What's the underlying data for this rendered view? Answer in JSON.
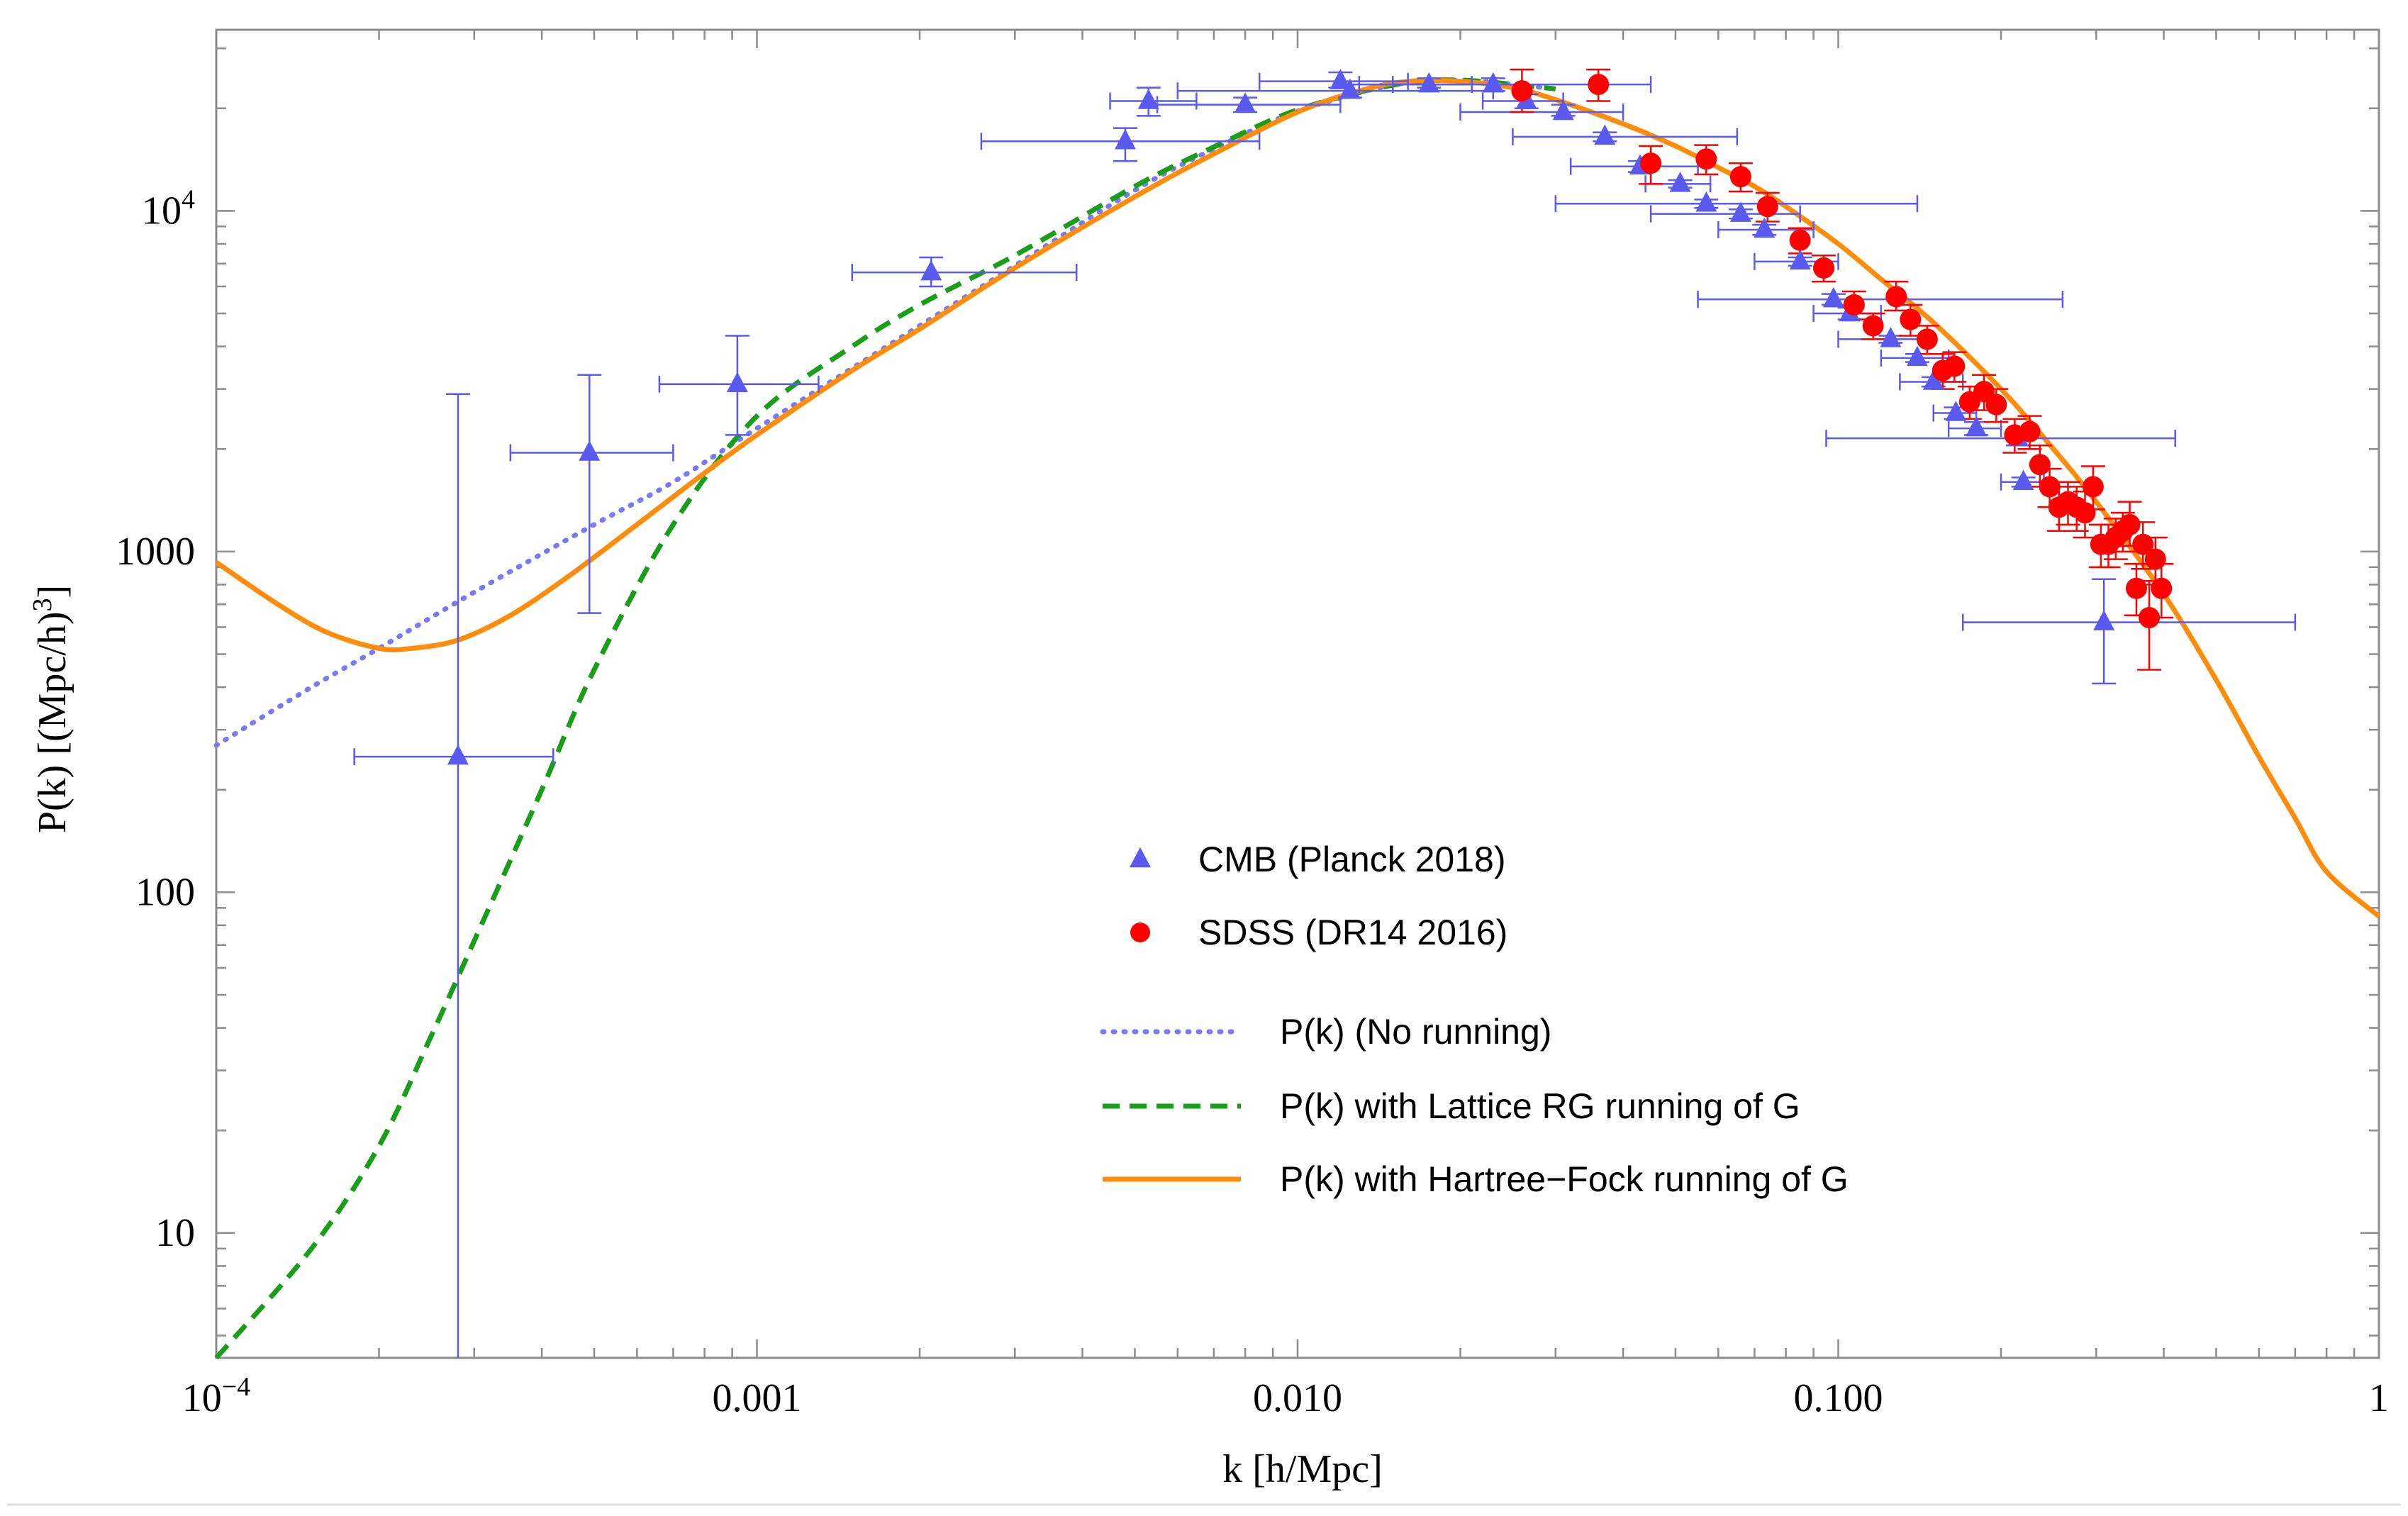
{
  "chart_data": {
    "type": "scatter",
    "title": "",
    "xlabel": "k [h/Mpc]",
    "ylabel_prefix": "P(k) [(Mpc/h)",
    "ylabel_exp": "3",
    "ylabel_suffix": "]",
    "xscale": "log",
    "yscale": "log",
    "xlim": [
      0.0001,
      1
    ],
    "ylim": [
      4.3,
      34000
    ],
    "x_ticks": [
      {
        "value": 0.0001,
        "base": "10",
        "exp": "−4"
      },
      {
        "value": 0.001,
        "label": "0.001"
      },
      {
        "value": 0.01,
        "label": "0.010"
      },
      {
        "value": 0.1,
        "label": "0.100"
      },
      {
        "value": 1,
        "label": "1"
      }
    ],
    "y_ticks": [
      {
        "value": 10,
        "label": "10"
      },
      {
        "value": 100,
        "label": "100"
      },
      {
        "value": 1000,
        "label": "1000"
      },
      {
        "value": 10000,
        "base": "10",
        "exp": "4"
      }
    ],
    "legend_position": "center-right",
    "colors": {
      "cmb": "#5a5af0",
      "sdss": "#ff0000",
      "no_running": "#7a7af0",
      "lattice": "#1a9e1a",
      "hartree": "#ff8c0a",
      "frame": "#8c8c8c"
    },
    "series": [
      {
        "name": "CMB (Planck 2018)",
        "kind": "points",
        "marker": "triangle",
        "points": [
          {
            "x": 0.00028,
            "y": 250,
            "xerr": [
              0.00018,
              0.00042
            ],
            "yerr": [
              4.3,
              2900
            ]
          },
          {
            "x": 0.00049,
            "y": 1950,
            "xerr": [
              0.00035,
              0.0007
            ],
            "yerr": [
              660,
              3300
            ]
          },
          {
            "x": 0.00092,
            "y": 3100,
            "xerr": [
              0.00066,
              0.0013
            ],
            "yerr": [
              2200,
              4300
            ]
          },
          {
            "x": 0.0021,
            "y": 6600,
            "xerr": [
              0.0015,
              0.0039
            ],
            "yerr": [
              6000,
              7300
            ]
          },
          {
            "x": 0.0048,
            "y": 16000,
            "xerr": [
              0.0026,
              0.0085
            ],
            "yerr": [
              14000,
              17500
            ]
          },
          {
            "x": 0.0053,
            "y": 21000,
            "xerr": [
              0.0045,
              0.0065
            ],
            "yerr": [
              19000,
              23000
            ]
          },
          {
            "x": 0.008,
            "y": 20500,
            "xerr": [
              0.0055,
              0.012
            ],
            "yerr": [
              19500,
              21500
            ]
          },
          {
            "x": 0.012,
            "y": 24000,
            "xerr": [
              0.0085,
              0.016
            ],
            "yerr": [
              23000,
              25500
            ]
          },
          {
            "x": 0.0125,
            "y": 22500,
            "xerr": [
              0.006,
              0.023
            ],
            "yerr": [
              21500,
              23500
            ]
          },
          {
            "x": 0.0175,
            "y": 23500,
            "xerr": [
              0.013,
              0.021
            ],
            "yerr": [
              23000,
              24500
            ]
          },
          {
            "x": 0.023,
            "y": 23500,
            "xerr": [
              0.015,
              0.045
            ],
            "yerr": [
              22500,
              24500
            ]
          },
          {
            "x": 0.0265,
            "y": 21000,
            "xerr": [
              0.022,
              0.031
            ],
            "yerr": [
              20000,
              22000
            ]
          },
          {
            "x": 0.031,
            "y": 19500,
            "xerr": [
              0.02,
              0.04
            ],
            "yerr": [
              19000,
              20500
            ]
          },
          {
            "x": 0.037,
            "y": 16500,
            "xerr": [
              0.025,
              0.065
            ],
            "yerr": [
              16000,
              17000
            ]
          },
          {
            "x": 0.043,
            "y": 13500,
            "xerr": [
              0.032,
              0.055
            ],
            "yerr": [
              13000,
              14000
            ]
          },
          {
            "x": 0.051,
            "y": 12000,
            "xerr": [
              0.044,
              0.058
            ],
            "yerr": [
              11700,
              12300
            ]
          },
          {
            "x": 0.057,
            "y": 10500,
            "xerr": [
              0.03,
              0.14
            ],
            "yerr": [
              10200,
              10800
            ]
          },
          {
            "x": 0.066,
            "y": 9800,
            "xerr": [
              0.045,
              0.085
            ],
            "yerr": [
              9500,
              10100
            ]
          },
          {
            "x": 0.073,
            "y": 8800,
            "xerr": [
              0.06,
              0.09
            ],
            "yerr": [
              8500,
              9100
            ]
          },
          {
            "x": 0.085,
            "y": 7100,
            "xerr": [
              0.07,
              0.1
            ],
            "yerr": [
              6900,
              7300
            ]
          },
          {
            "x": 0.098,
            "y": 5500,
            "xerr": [
              0.055,
              0.26
            ],
            "yerr": [
              5300,
              5700
            ]
          },
          {
            "x": 0.105,
            "y": 5000,
            "xerr": [
              0.09,
              0.12
            ],
            "yerr": [
              4800,
              5200
            ]
          },
          {
            "x": 0.125,
            "y": 4200,
            "xerr": [
              0.1,
              0.15
            ],
            "yerr": [
              4100,
              4300
            ]
          },
          {
            "x": 0.14,
            "y": 3700,
            "xerr": [
              0.12,
              0.16
            ],
            "yerr": [
              3600,
              3800
            ]
          },
          {
            "x": 0.15,
            "y": 3150,
            "xerr": [
              0.13,
              0.17
            ],
            "yerr": [
              3050,
              3250
            ]
          },
          {
            "x": 0.165,
            "y": 2550,
            "xerr": [
              0.15,
              0.18
            ],
            "yerr": [
              2450,
              2650
            ]
          },
          {
            "x": 0.18,
            "y": 2300,
            "xerr": [
              0.16,
              0.2
            ],
            "yerr": [
              2200,
              2400
            ]
          },
          {
            "x": 0.215,
            "y": 2150,
            "xerr": [
              0.095,
              0.42
            ],
            "yerr": [
              2050,
              2250
            ]
          },
          {
            "x": 0.22,
            "y": 1600,
            "xerr": [
              0.2,
              0.24
            ],
            "yerr": [
              1550,
              1650
            ]
          },
          {
            "x": 0.31,
            "y": 620,
            "xerr": [
              0.17,
              0.7
            ],
            "yerr": [
              410,
              830
            ]
          }
        ]
      },
      {
        "name": "SDSS (DR14 2016)",
        "kind": "points",
        "marker": "circle",
        "points": [
          {
            "x": 0.026,
            "y": 22500,
            "yerr": [
              19500,
              26000
            ]
          },
          {
            "x": 0.036,
            "y": 23500,
            "yerr": [
              21000,
              26000
            ]
          },
          {
            "x": 0.045,
            "y": 13800,
            "yerr": [
              12000,
              15500
            ]
          },
          {
            "x": 0.057,
            "y": 14200,
            "yerr": [
              12800,
              15600
            ]
          },
          {
            "x": 0.066,
            "y": 12600,
            "yerr": [
              11400,
              13800
            ]
          },
          {
            "x": 0.074,
            "y": 10300,
            "yerr": [
              9300,
              11300
            ]
          },
          {
            "x": 0.085,
            "y": 8200,
            "yerr": [
              7500,
              8900
            ]
          },
          {
            "x": 0.094,
            "y": 6800,
            "yerr": [
              6200,
              7400
            ]
          },
          {
            "x": 0.107,
            "y": 5300,
            "yerr": [
              4800,
              5800
            ]
          },
          {
            "x": 0.116,
            "y": 4600,
            "yerr": [
              4200,
              5000
            ]
          },
          {
            "x": 0.128,
            "y": 5600,
            "yerr": [
              5100,
              6200
            ]
          },
          {
            "x": 0.136,
            "y": 4800,
            "yerr": [
              4300,
              5300
            ]
          },
          {
            "x": 0.146,
            "y": 4200,
            "yerr": [
              3800,
              4600
            ]
          },
          {
            "x": 0.156,
            "y": 3400,
            "yerr": [
              3000,
              3800
            ]
          },
          {
            "x": 0.164,
            "y": 3500,
            "yerr": [
              3150,
              3850
            ]
          },
          {
            "x": 0.175,
            "y": 2750,
            "yerr": [
              2450,
              3050
            ]
          },
          {
            "x": 0.186,
            "y": 2950,
            "yerr": [
              2600,
              3300
            ]
          },
          {
            "x": 0.196,
            "y": 2700,
            "yerr": [
              2400,
              3000
            ]
          },
          {
            "x": 0.212,
            "y": 2200,
            "yerr": [
              1950,
              2450
            ]
          },
          {
            "x": 0.226,
            "y": 2250,
            "yerr": [
              2000,
              2500
            ]
          },
          {
            "x": 0.236,
            "y": 1800,
            "yerr": [
              1550,
              2050
            ]
          },
          {
            "x": 0.246,
            "y": 1550,
            "yerr": [
              1350,
              1750
            ]
          },
          {
            "x": 0.256,
            "y": 1350,
            "yerr": [
              1150,
              1550
            ]
          },
          {
            "x": 0.266,
            "y": 1400,
            "yerr": [
              1200,
              1600
            ]
          },
          {
            "x": 0.276,
            "y": 1350,
            "yerr": [
              1150,
              1550
            ]
          },
          {
            "x": 0.286,
            "y": 1300,
            "yerr": [
              1100,
              1500
            ]
          },
          {
            "x": 0.296,
            "y": 1550,
            "yerr": [
              1330,
              1780
            ]
          },
          {
            "x": 0.306,
            "y": 1050,
            "yerr": [
              900,
              1200
            ]
          },
          {
            "x": 0.316,
            "y": 1050,
            "yerr": [
              900,
              1200
            ]
          },
          {
            "x": 0.326,
            "y": 1100,
            "yerr": [
              950,
              1250
            ]
          },
          {
            "x": 0.336,
            "y": 1150,
            "yerr": [
              1000,
              1300
            ]
          },
          {
            "x": 0.346,
            "y": 1200,
            "yerr": [
              1040,
              1400
            ]
          },
          {
            "x": 0.356,
            "y": 780,
            "yerr": [
              650,
              920
            ]
          },
          {
            "x": 0.366,
            "y": 1050,
            "yerr": [
              890,
              1220
            ]
          },
          {
            "x": 0.376,
            "y": 640,
            "yerr": [
              450,
              820
            ]
          },
          {
            "x": 0.386,
            "y": 950,
            "yerr": [
              800,
              1100
            ]
          },
          {
            "x": 0.396,
            "y": 780,
            "yerr": [
              640,
              920
            ]
          }
        ]
      },
      {
        "name": "P(k) (No running)",
        "kind": "line",
        "style": "dotted",
        "x": [
          0.0001,
          0.00015,
          0.0002,
          0.0003,
          0.0005,
          0.0007,
          0.001,
          0.002,
          0.003,
          0.005,
          0.007,
          0.01,
          0.015,
          0.02,
          0.03
        ],
        "values": [
          270,
          400,
          520,
          760,
          1200,
          1600,
          2300,
          4600,
          6900,
          11500,
          15200,
          19600,
          23400,
          24200,
          22800
        ]
      },
      {
        "name": "P(k) with Lattice RG running of G",
        "kind": "line",
        "style": "dashed",
        "x": [
          0.0001,
          0.00015,
          0.0002,
          0.00025,
          0.0003,
          0.0004,
          0.0005,
          0.0007,
          0.001,
          0.0015,
          0.002,
          0.003,
          0.005,
          0.007,
          0.01,
          0.015,
          0.02,
          0.03
        ],
        "values": [
          4.3,
          9,
          18,
          38,
          72,
          200,
          450,
          1200,
          2500,
          4000,
          5300,
          7400,
          11800,
          15400,
          19800,
          23400,
          24200,
          22800
        ]
      },
      {
        "name": "P(k) with Hartree−Fock running of G",
        "kind": "line",
        "style": "solid",
        "x": [
          0.0001,
          0.00013,
          0.00016,
          0.0002,
          0.00023,
          0.00028,
          0.00035,
          0.00045,
          0.0006,
          0.0008,
          0.001,
          0.0015,
          0.002,
          0.003,
          0.005,
          0.007,
          0.01,
          0.013,
          0.016,
          0.02,
          0.025,
          0.03,
          0.04,
          0.05,
          0.06,
          0.07,
          0.08,
          0.1,
          0.12,
          0.15,
          0.2,
          0.25,
          0.3,
          0.4,
          0.5,
          0.6,
          0.7,
          0.8,
          1.0
        ],
        "values": [
          930,
          700,
          580,
          520,
          520,
          550,
          650,
          850,
          1200,
          1700,
          2200,
          3400,
          4500,
          6800,
          11000,
          14700,
          19500,
          22500,
          24000,
          24000,
          23000,
          21200,
          18000,
          15500,
          13400,
          11800,
          10300,
          8000,
          6300,
          4700,
          3000,
          2000,
          1400,
          750,
          420,
          250,
          165,
          115,
          85
        ]
      }
    ]
  }
}
